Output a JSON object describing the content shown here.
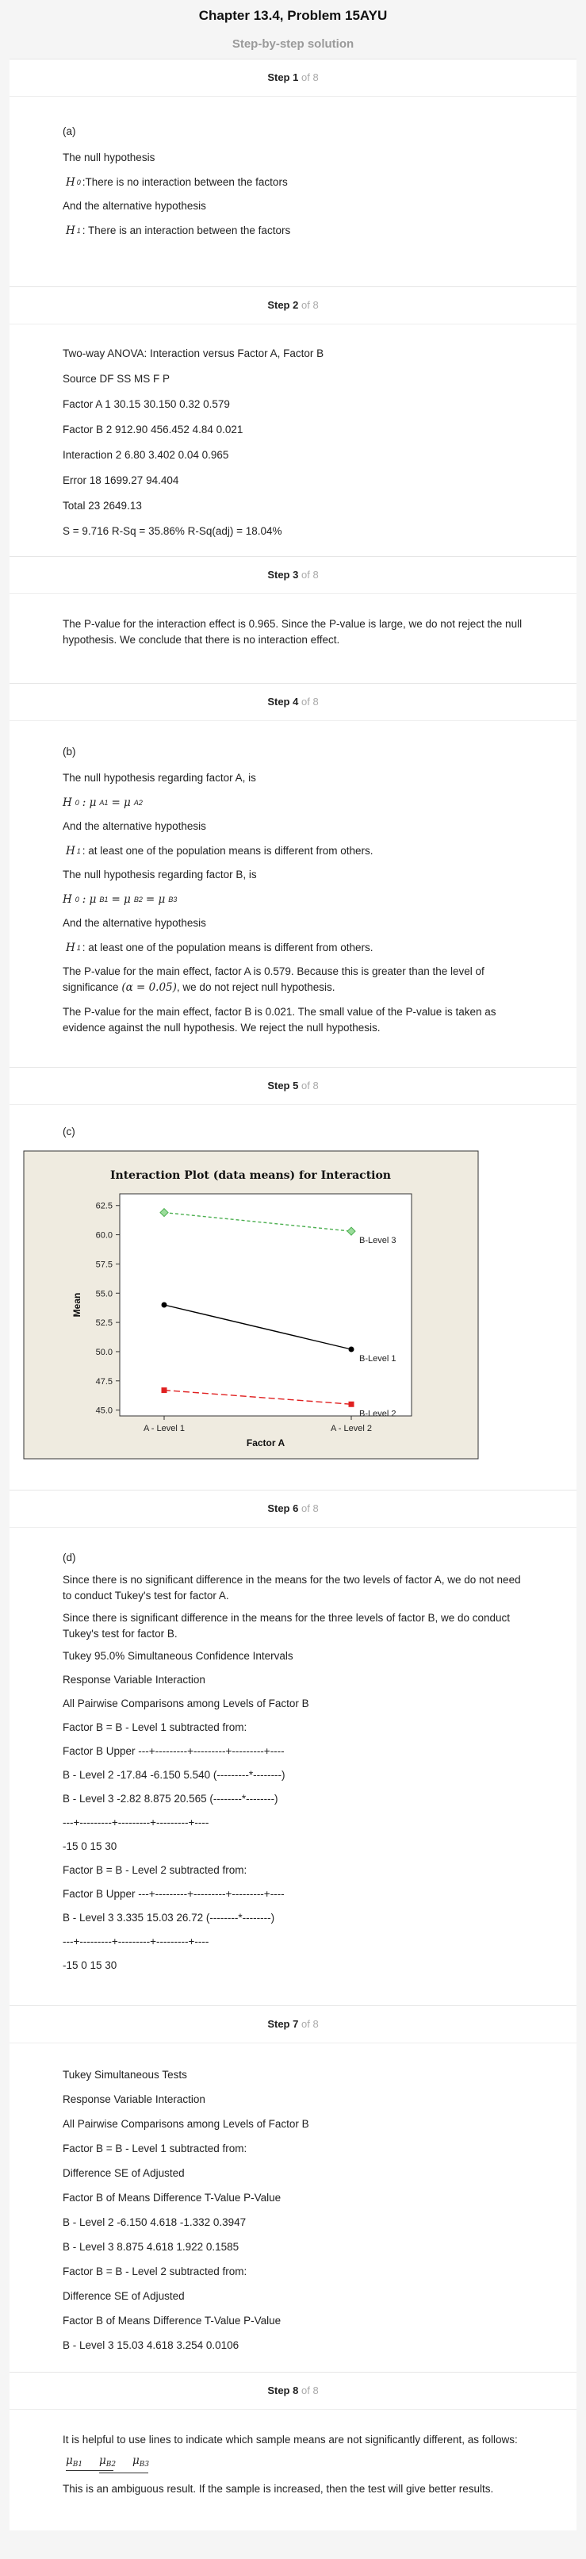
{
  "header": {
    "title": "Chapter 13.4, Problem 15AYU",
    "subtitle": "Step-by-step solution"
  },
  "step_prefix": "Step",
  "step_of": "of 8",
  "steps": {
    "s1": {
      "num": "1",
      "part": "(a)",
      "l1": "The null hypothesis",
      "h0_label": "H",
      "h0_sub": "0",
      "h0_text": ":There is no interaction between the factors",
      "l2": "And the alternative hypothesis",
      "h1_label": "H",
      "h1_sub": "1",
      "h1_text": ": There is an interaction between the factors"
    },
    "s2": {
      "num": "2",
      "lines": [
        "Two-way ANOVA: Interaction versus Factor A, Factor B",
        "Source DF SS MS F P",
        "Factor A 1 30.15 30.150 0.32 0.579",
        "Factor B 2 912.90 456.452 4.84 0.021",
        "Interaction 2 6.80 3.402 0.04 0.965",
        "Error 18 1699.27 94.404",
        "Total 23 2649.13",
        "S = 9.716 R-Sq = 35.86% R-Sq(adj) = 18.04%"
      ]
    },
    "s3": {
      "num": "3",
      "text": "The P-value for the interaction effect is 0.965. Since the P-value is large, we do not reject the null hypothesis. We conclude that there is no interaction effect."
    },
    "s4": {
      "num": "4",
      "part": "(b)",
      "l1": "The null hypothesis regarding factor A, is",
      "eqA": "H",
      "eqA_sub": "0",
      "eqA_mid": ": μ",
      "eqA_s1": "A1",
      "eqA_eq": " = μ",
      "eqA_s2": "A2",
      "l2": "And the alternative hypothesis",
      "h1": "H",
      "h1_sub": "1",
      "h1_text": ": at least one of the population means is different from others.",
      "l3": "The null hypothesis regarding factor B, is",
      "eqB": "H",
      "eqB_sub": "0",
      "eqB_mid": ": μ",
      "eqB_s1": "B1",
      "eqB_eq1": " = μ",
      "eqB_s2": "B2",
      "eqB_eq2": " = μ",
      "eqB_s3": "B3",
      "l4": "And the alternative hypothesis",
      "h1b_text": ": at least one of the population means is different from others.",
      "p1a": "The P-value for the main effect, factor A is 0.579. Because this is greater than the level of significance",
      "alpha": "(α = 0.05)",
      "p1b": ", we do not reject null hypothesis.",
      "p2": "The P-value for the main effect, factor B is 0.021. The small value of the P-value is taken as evidence against the null hypothesis. We reject the null hypothesis."
    },
    "s5": {
      "num": "5",
      "part": "(c)"
    },
    "s6": {
      "num": "6",
      "part": "(d)",
      "lines": [
        "Since there is no significant difference in the means for the two levels of factor A, we do not need to conduct Tukey's test for factor A.",
        "Since there is significant difference in the means for the three levels of factor B, we do conduct Tukey's test for factor B.",
        "Tukey 95.0% Simultaneous Confidence Intervals",
        "Response Variable Interaction",
        "All Pairwise Comparisons among Levels of Factor B",
        "Factor B = B - Level 1 subtracted from:",
        "Factor B Upper ---+---------+---------+---------+----",
        "B - Level 2 -17.84 -6.150 5.540 (---------*--------)",
        "B - Level 3 -2.82 8.875 20.565 (--------*--------)",
        "---+---------+---------+---------+----",
        "-15 0 15 30",
        "Factor B = B - Level 2 subtracted from:",
        "Factor B Upper ---+---------+---------+---------+----",
        "B - Level 3 3.335 15.03 26.72 (--------*--------)",
        "---+---------+---------+---------+----",
        "-15 0 15 30"
      ]
    },
    "s7": {
      "num": "7",
      "lines": [
        "Tukey Simultaneous Tests",
        "Response Variable Interaction",
        "All Pairwise Comparisons among Levels of Factor B",
        "Factor B = B - Level 1 subtracted from:",
        "Difference SE of Adjusted",
        "Factor B of Means Difference T-Value P-Value",
        "B - Level 2 -6.150 4.618 -1.332 0.3947",
        "B - Level 3 8.875 4.618 1.922 0.1585",
        "Factor B = B - Level 2 subtracted from:",
        "Difference SE of Adjusted",
        "Factor B of Means Difference T-Value P-Value",
        "B - Level 3 15.03 4.618 3.254 0.0106"
      ]
    },
    "s8": {
      "num": "8",
      "l1": "It is helpful to use lines to indicate which sample means are not significantly different, as follows:",
      "m1": "μ",
      "m1s": "B1",
      "m2": "μ",
      "m2s": "B2",
      "m3": "μ",
      "m3s": "B3",
      "l2": "This is an ambiguous result. If the sample is increased, then the test will give better results."
    }
  },
  "chart_data": {
    "type": "line",
    "title": "Interaction Plot (data means) for Interaction",
    "xlabel": "Factor A",
    "ylabel": "Mean",
    "categories": [
      "A - Level 1",
      "A - Level 2"
    ],
    "ylim": [
      44.5,
      63.5
    ],
    "yticks": [
      "45.0",
      "47.5",
      "50.0",
      "52.5",
      "55.0",
      "57.5",
      "60.0",
      "62.5"
    ],
    "series": [
      {
        "name": "B-Level 3",
        "values": [
          61.9,
          60.3
        ],
        "color": "#4caf50",
        "dash": "4,3",
        "marker": "diamond"
      },
      {
        "name": "B-Level 1",
        "values": [
          54.0,
          50.2
        ],
        "color": "#000000",
        "dash": "",
        "marker": "circle"
      },
      {
        "name": "B-Level 2",
        "values": [
          46.7,
          45.5
        ],
        "color": "#e02020",
        "dash": "8,4",
        "marker": "square"
      }
    ],
    "colors": {
      "panel_bg": "#efebe0"
    }
  }
}
